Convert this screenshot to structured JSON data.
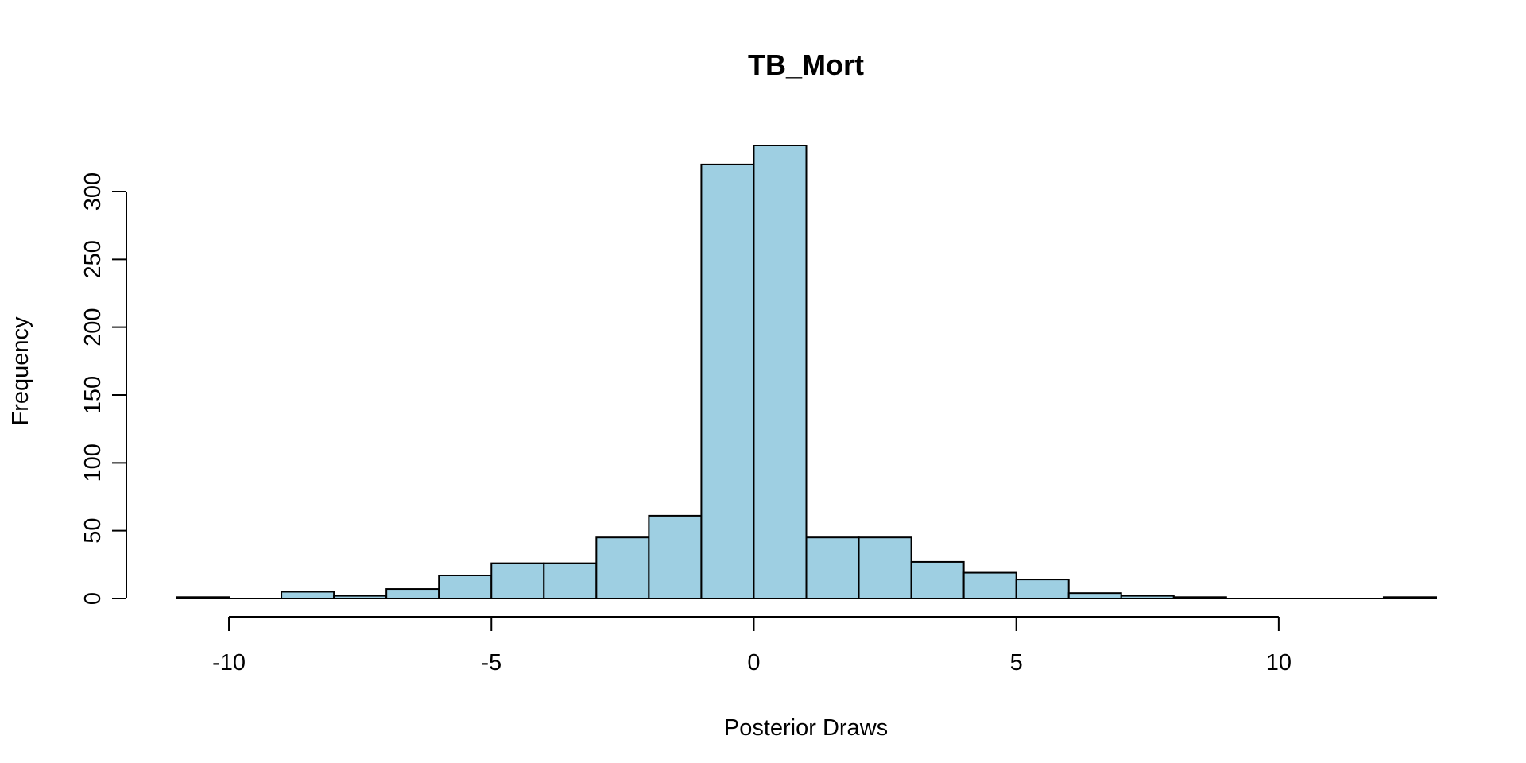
{
  "chart_data": {
    "type": "bar",
    "title": "TB_Mort",
    "xlabel": "Posterior Draws",
    "ylabel": "Frequency",
    "bins": [
      {
        "x0": -11,
        "x1": -10,
        "count": 1
      },
      {
        "x0": -10,
        "x1": -9,
        "count": 0
      },
      {
        "x0": -9,
        "x1": -8,
        "count": 5
      },
      {
        "x0": -8,
        "x1": -7,
        "count": 2
      },
      {
        "x0": -7,
        "x1": -6,
        "count": 7
      },
      {
        "x0": -6,
        "x1": -5,
        "count": 17
      },
      {
        "x0": -5,
        "x1": -4,
        "count": 26
      },
      {
        "x0": -4,
        "x1": -3,
        "count": 26
      },
      {
        "x0": -3,
        "x1": -2,
        "count": 45
      },
      {
        "x0": -2,
        "x1": -1,
        "count": 61
      },
      {
        "x0": -1,
        "x1": 0,
        "count": 320
      },
      {
        "x0": 0,
        "x1": 1,
        "count": 334
      },
      {
        "x0": 1,
        "x1": 2,
        "count": 45
      },
      {
        "x0": 2,
        "x1": 3,
        "count": 45
      },
      {
        "x0": 3,
        "x1": 4,
        "count": 27
      },
      {
        "x0": 4,
        "x1": 5,
        "count": 19
      },
      {
        "x0": 5,
        "x1": 6,
        "count": 14
      },
      {
        "x0": 6,
        "x1": 7,
        "count": 4
      },
      {
        "x0": 7,
        "x1": 8,
        "count": 2
      },
      {
        "x0": 8,
        "x1": 9,
        "count": 1
      },
      {
        "x0": 9,
        "x1": 10,
        "count": 0
      },
      {
        "x0": 10,
        "x1": 11,
        "count": 0
      },
      {
        "x0": 11,
        "x1": 12,
        "count": 0
      },
      {
        "x0": 12,
        "x1": 13,
        "count": 1
      }
    ],
    "xticks": [
      -10,
      -5,
      0,
      5,
      10
    ],
    "xtick_labels": [
      "-10",
      "-5",
      "0",
      "5",
      "10"
    ],
    "yticks": [
      0,
      50,
      100,
      150,
      200,
      250,
      300
    ],
    "ytick_labels": [
      "0",
      "50",
      "100",
      "150",
      "200",
      "250",
      "300"
    ],
    "xlim": [
      -11,
      13
    ],
    "ylim": [
      0,
      334
    ],
    "grid": false,
    "legend": "none",
    "colors": {
      "bar_fill": "#9ecfe2",
      "bar_stroke": "#000000"
    }
  }
}
